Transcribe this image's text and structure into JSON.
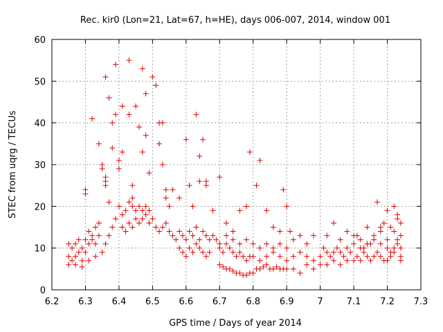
{
  "chart_data": {
    "type": "scatter",
    "title": "Rec. kir0 (Lon=21, Lat=67, h=HE), days 006-007, 2014, window 001",
    "xlabel": "GPS time / Days of year 2014",
    "ylabel": "STEC from uqrg / TECUs",
    "xlim": [
      6.2,
      7.3
    ],
    "ylim": [
      0,
      60
    ],
    "x_ticks": [
      "6.2",
      "6.3",
      "6.4",
      "6.5",
      "6.6",
      "6.7",
      "6.8",
      "6.9",
      "7",
      "7.1",
      "7.2",
      "7.3"
    ],
    "y_ticks": [
      "0",
      "10",
      "20",
      "30",
      "40",
      "50",
      "60"
    ],
    "grid": true,
    "marker": "+",
    "color": "#dd0000",
    "series": [
      {
        "name": "STEC",
        "points": [
          [
            6.25,
            6
          ],
          [
            6.26,
            7
          ],
          [
            6.27,
            8
          ],
          [
            6.28,
            9
          ],
          [
            6.29,
            7
          ],
          [
            6.3,
            9
          ],
          [
            6.31,
            11
          ],
          [
            6.32,
            12
          ],
          [
            6.33,
            11
          ],
          [
            6.34,
            13
          ],
          [
            6.25,
            11
          ],
          [
            6.26,
            10
          ],
          [
            6.27,
            11
          ],
          [
            6.28,
            12
          ],
          [
            6.29,
            10
          ],
          [
            6.3,
            12
          ],
          [
            6.31,
            14
          ],
          [
            6.32,
            13
          ],
          [
            6.33,
            15
          ],
          [
            6.34,
            16
          ],
          [
            6.25,
            8
          ],
          [
            6.27,
            6
          ],
          [
            6.29,
            5.5
          ],
          [
            6.31,
            7
          ],
          [
            6.33,
            8
          ],
          [
            6.35,
            9
          ],
          [
            6.36,
            11
          ],
          [
            6.37,
            13
          ],
          [
            6.38,
            15
          ],
          [
            6.39,
            17
          ],
          [
            6.3,
            24
          ],
          [
            6.3,
            23
          ],
          [
            6.32,
            41
          ],
          [
            6.34,
            35
          ],
          [
            6.35,
            29
          ],
          [
            6.35,
            30
          ],
          [
            6.36,
            25
          ],
          [
            6.36,
            26
          ],
          [
            6.37,
            21
          ],
          [
            6.36,
            27
          ],
          [
            6.36,
            51
          ],
          [
            6.37,
            46
          ],
          [
            6.38,
            40
          ],
          [
            6.38,
            34
          ],
          [
            6.39,
            54
          ],
          [
            6.39,
            42
          ],
          [
            6.4,
            29
          ],
          [
            6.4,
            31
          ],
          [
            6.41,
            44
          ],
          [
            6.41,
            33
          ],
          [
            6.43,
            55
          ],
          [
            6.43,
            42
          ],
          [
            6.44,
            25
          ],
          [
            6.44,
            22
          ],
          [
            6.45,
            44
          ],
          [
            6.46,
            39
          ],
          [
            6.47,
            53
          ],
          [
            6.47,
            33
          ],
          [
            6.48,
            37
          ],
          [
            6.48,
            47
          ],
          [
            6.49,
            28
          ],
          [
            6.5,
            51
          ],
          [
            6.51,
            49
          ],
          [
            6.52,
            40
          ],
          [
            6.52,
            35
          ],
          [
            6.53,
            40
          ],
          [
            6.53,
            30
          ],
          [
            6.54,
            24
          ],
          [
            6.54,
            22
          ],
          [
            6.55,
            20
          ],
          [
            6.4,
            20
          ],
          [
            6.41,
            18
          ],
          [
            6.42,
            19
          ],
          [
            6.43,
            21
          ],
          [
            6.44,
            20
          ],
          [
            6.45,
            19
          ],
          [
            6.46,
            20
          ],
          [
            6.47,
            19
          ],
          [
            6.48,
            20
          ],
          [
            6.49,
            19
          ],
          [
            6.41,
            15
          ],
          [
            6.42,
            14
          ],
          [
            6.43,
            16
          ],
          [
            6.44,
            15
          ],
          [
            6.45,
            17
          ],
          [
            6.46,
            16
          ],
          [
            6.47,
            17
          ],
          [
            6.48,
            18
          ],
          [
            6.49,
            16
          ],
          [
            6.5,
            17
          ],
          [
            6.51,
            15
          ],
          [
            6.52,
            14
          ],
          [
            6.53,
            15
          ],
          [
            6.54,
            16
          ],
          [
            6.55,
            14
          ],
          [
            6.56,
            13
          ],
          [
            6.57,
            12
          ],
          [
            6.58,
            14
          ],
          [
            6.59,
            13
          ],
          [
            6.6,
            12
          ],
          [
            6.56,
            24
          ],
          [
            6.58,
            22
          ],
          [
            6.6,
            36
          ],
          [
            6.61,
            25
          ],
          [
            6.62,
            20
          ],
          [
            6.63,
            42
          ],
          [
            6.64,
            32
          ],
          [
            6.64,
            26
          ],
          [
            6.65,
            36
          ],
          [
            6.66,
            25
          ],
          [
            6.58,
            10
          ],
          [
            6.59,
            9
          ],
          [
            6.6,
            8
          ],
          [
            6.61,
            10
          ],
          [
            6.62,
            9
          ],
          [
            6.63,
            11
          ],
          [
            6.64,
            10
          ],
          [
            6.65,
            9
          ],
          [
            6.66,
            8
          ],
          [
            6.67,
            9
          ],
          [
            6.61,
            14
          ],
          [
            6.62,
            13
          ],
          [
            6.63,
            15
          ],
          [
            6.64,
            12
          ],
          [
            6.65,
            14
          ],
          [
            6.66,
            13
          ],
          [
            6.67,
            12
          ],
          [
            6.68,
            13
          ],
          [
            6.69,
            12
          ],
          [
            6.7,
            11
          ],
          [
            6.66,
            26
          ],
          [
            6.68,
            19
          ],
          [
            6.7,
            27
          ],
          [
            6.72,
            16
          ],
          [
            6.74,
            14
          ],
          [
            6.76,
            19
          ],
          [
            6.78,
            20
          ],
          [
            6.79,
            33
          ],
          [
            6.81,
            25
          ],
          [
            6.82,
            31
          ],
          [
            6.7,
            6
          ],
          [
            6.71,
            5.5
          ],
          [
            6.72,
            5
          ],
          [
            6.73,
            5
          ],
          [
            6.74,
            4.5
          ],
          [
            6.75,
            4
          ],
          [
            6.76,
            4
          ],
          [
            6.77,
            3.5
          ],
          [
            6.78,
            3.5
          ],
          [
            6.79,
            4
          ],
          [
            6.7,
            10
          ],
          [
            6.71,
            9
          ],
          [
            6.72,
            11
          ],
          [
            6.73,
            10
          ],
          [
            6.74,
            9
          ],
          [
            6.75,
            8
          ],
          [
            6.76,
            9
          ],
          [
            6.77,
            8
          ],
          [
            6.78,
            7
          ],
          [
            6.79,
            8
          ],
          [
            6.72,
            13
          ],
          [
            6.74,
            12
          ],
          [
            6.76,
            11
          ],
          [
            6.78,
            12
          ],
          [
            6.8,
            11
          ],
          [
            6.82,
            10
          ],
          [
            6.84,
            11
          ],
          [
            6.86,
            10
          ],
          [
            6.88,
            11
          ],
          [
            6.9,
            10
          ],
          [
            6.8,
            4
          ],
          [
            6.81,
            5
          ],
          [
            6.82,
            5
          ],
          [
            6.83,
            5.5
          ],
          [
            6.84,
            6
          ],
          [
            6.85,
            5
          ],
          [
            6.86,
            5
          ],
          [
            6.87,
            5.5
          ],
          [
            6.88,
            5
          ],
          [
            6.89,
            5
          ],
          [
            6.8,
            8
          ],
          [
            6.82,
            7
          ],
          [
            6.84,
            8
          ],
          [
            6.86,
            9
          ],
          [
            6.88,
            8
          ],
          [
            6.9,
            7
          ],
          [
            6.92,
            8
          ],
          [
            6.94,
            9
          ],
          [
            6.96,
            8
          ],
          [
            6.98,
            7
          ],
          [
            6.84,
            19
          ],
          [
            6.86,
            15
          ],
          [
            6.88,
            14
          ],
          [
            6.89,
            24
          ],
          [
            6.9,
            20
          ],
          [
            6.91,
            14
          ],
          [
            6.92,
            12
          ],
          [
            6.94,
            13
          ],
          [
            6.96,
            11
          ],
          [
            6.98,
            13
          ],
          [
            6.9,
            5
          ],
          [
            6.92,
            5
          ],
          [
            6.94,
            4
          ],
          [
            6.96,
            6
          ],
          [
            6.98,
            5
          ],
          [
            7.0,
            6
          ],
          [
            7.02,
            6
          ],
          [
            7.04,
            7
          ],
          [
            7.06,
            6
          ],
          [
            7.08,
            7
          ],
          [
            7.0,
            8
          ],
          [
            7.01,
            10
          ],
          [
            7.02,
            9
          ],
          [
            7.03,
            8
          ],
          [
            7.04,
            9
          ],
          [
            7.05,
            10
          ],
          [
            7.06,
            9
          ],
          [
            7.07,
            8
          ],
          [
            7.08,
            10
          ],
          [
            7.09,
            9
          ],
          [
            7.02,
            13
          ],
          [
            7.04,
            16
          ],
          [
            7.06,
            12
          ],
          [
            7.08,
            14
          ],
          [
            7.1,
            13
          ],
          [
            7.12,
            12
          ],
          [
            7.14,
            15
          ],
          [
            7.16,
            13
          ],
          [
            7.18,
            14
          ],
          [
            7.2,
            12
          ],
          [
            7.1,
            7
          ],
          [
            7.11,
            8
          ],
          [
            7.12,
            7
          ],
          [
            7.13,
            9
          ],
          [
            7.14,
            8
          ],
          [
            7.15,
            7
          ],
          [
            7.16,
            8
          ],
          [
            7.17,
            9
          ],
          [
            7.18,
            8
          ],
          [
            7.19,
            7
          ],
          [
            7.1,
            11
          ],
          [
            7.12,
            10
          ],
          [
            7.14,
            11
          ],
          [
            7.16,
            12
          ],
          [
            7.18,
            11
          ],
          [
            7.2,
            10
          ],
          [
            7.21,
            9
          ],
          [
            7.22,
            10
          ],
          [
            7.23,
            11
          ],
          [
            7.24,
            10
          ],
          [
            7.17,
            21
          ],
          [
            7.2,
            19
          ],
          [
            7.21,
            15
          ],
          [
            7.22,
            20
          ],
          [
            7.23,
            18
          ],
          [
            7.23,
            17
          ],
          [
            7.24,
            16
          ],
          [
            7.24,
            8
          ],
          [
            7.24,
            7
          ],
          [
            7.22,
            14
          ],
          [
            7.2,
            7
          ],
          [
            7.21,
            8
          ],
          [
            7.22,
            9
          ],
          [
            7.23,
            12
          ],
          [
            7.24,
            13
          ],
          [
            7.19,
            16
          ],
          [
            7.18,
            15
          ],
          [
            7.15,
            11
          ],
          [
            7.13,
            10
          ],
          [
            7.11,
            13
          ]
        ]
      }
    ]
  }
}
